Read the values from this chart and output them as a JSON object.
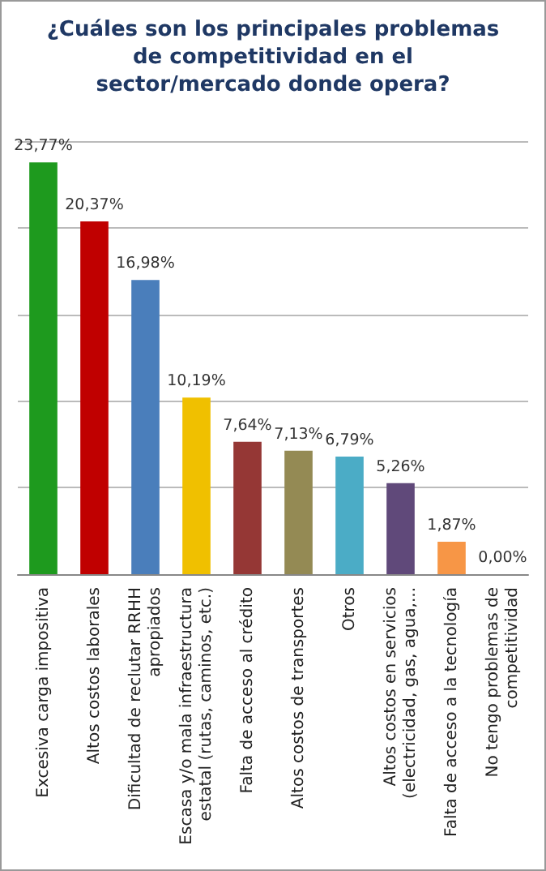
{
  "chart_data": {
    "type": "bar",
    "title": "¿Cuáles son los principales problemas\nde competitividad en el\nsector/mercado donde opera?",
    "categories": [
      "Excesiva carga impositiva",
      "Altos costos laborales",
      "Dificultad de reclutar RRHH\napropiados",
      "Escasa y/o mala infraestructura\nestatal (rutas, caminos, etc.)",
      "Falta de acceso al crédito",
      "Altos costos de transportes",
      "Otros",
      "Altos costos en servicios\n(electricidad, gas, agua,...",
      "Falta de acceso a la tecnología",
      "No tengo problemas de\ncompetitividad"
    ],
    "values": [
      23.77,
      20.37,
      16.98,
      10.19,
      7.64,
      7.13,
      6.79,
      5.26,
      1.87,
      0
    ],
    "value_labels": [
      "23,77%",
      "20,37%",
      "16,98%",
      "10,19%",
      "7,64%",
      "7,13%",
      "6,79%",
      "5,26%",
      "1,87%",
      "0,00%"
    ],
    "colors": [
      "#1e9a1e",
      "#c00000",
      "#4a7ebb",
      "#f0c000",
      "#953735",
      "#948a54",
      "#4bacc6",
      "#60497a",
      "#f79646",
      "#a6a6a6"
    ],
    "ylim": [
      0,
      25
    ],
    "yticks": [
      {
        "value": 0,
        "label": null
      },
      {
        "value": 5,
        "label": null
      },
      {
        "value": 10,
        "label": null
      },
      {
        "value": 15,
        "label": null
      },
      {
        "value": 20,
        "label": null
      },
      {
        "value": 25,
        "label": null
      }
    ],
    "grid": "y",
    "tick_labels": "x"
  }
}
